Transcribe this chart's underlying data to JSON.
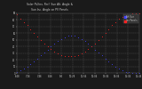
{
  "background": "#1a1a1a",
  "plot_bg": "#1a1a1a",
  "grid_color": "#555555",
  "blue_color": "#4444ff",
  "red_color": "#ff2222",
  "tick_color": "#cccccc",
  "title_color": "#cccccc",
  "legend_bg": "#333333",
  "ylim": [
    0,
    90
  ],
  "xlim": [
    0,
    36
  ],
  "x_labels": [
    "6:48",
    "7:16",
    "7:46",
    "8:16",
    "9:4",
    "10:28",
    "11:56",
    "12:04",
    "13:04",
    "14:04",
    "15:04",
    "15:46"
  ],
  "y_labels": [
    "0",
    "10",
    "20",
    "30",
    "40",
    "50",
    "60",
    "70",
    "80",
    "90"
  ],
  "legend_blue": "Alt Sun",
  "legend_red": "Inc Panels",
  "blue_x": [
    0,
    1,
    2,
    3,
    4,
    5,
    6,
    7,
    8,
    9,
    10,
    11,
    12,
    13,
    14,
    15,
    16,
    17,
    18,
    19,
    20,
    21,
    22,
    23,
    24,
    25,
    26,
    27,
    28,
    29,
    30,
    31,
    32,
    33,
    34,
    35,
    36
  ],
  "blue_y": [
    2,
    4,
    7,
    10,
    14,
    18,
    22,
    27,
    31,
    35,
    40,
    44,
    48,
    51,
    54,
    56,
    57,
    56,
    54,
    51,
    48,
    44,
    40,
    35,
    31,
    27,
    22,
    18,
    14,
    10,
    7,
    4,
    2,
    1,
    0,
    0,
    0
  ],
  "red_x": [
    0,
    1,
    2,
    3,
    4,
    5,
    6,
    7,
    8,
    9,
    10,
    11,
    12,
    13,
    14,
    15,
    16,
    17,
    18,
    19,
    20,
    21,
    22,
    23,
    24,
    25,
    26,
    27,
    28,
    29,
    30,
    31,
    32,
    33,
    34,
    35,
    36
  ],
  "red_y": [
    88,
    82,
    77,
    72,
    66,
    60,
    55,
    50,
    45,
    40,
    36,
    32,
    29,
    27,
    26,
    25,
    25,
    26,
    27,
    29,
    32,
    36,
    40,
    45,
    50,
    55,
    60,
    66,
    72,
    77,
    82,
    85,
    88,
    89,
    90,
    90,
    90
  ]
}
